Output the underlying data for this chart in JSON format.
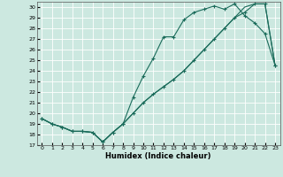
{
  "xlabel": "Humidex (Indice chaleur)",
  "bg_color": "#cce8e0",
  "line_color": "#1a6b5a",
  "ylim": [
    17,
    30.5
  ],
  "xlim": [
    -0.5,
    23.5
  ],
  "yticks": [
    17,
    18,
    19,
    20,
    21,
    22,
    23,
    24,
    25,
    26,
    27,
    28,
    29,
    30
  ],
  "xticks": [
    0,
    1,
    2,
    3,
    4,
    5,
    6,
    7,
    8,
    9,
    10,
    11,
    12,
    13,
    14,
    15,
    16,
    17,
    18,
    19,
    20,
    21,
    22,
    23
  ],
  "line1_x": [
    0,
    1,
    2,
    3,
    4,
    5,
    6,
    7,
    8,
    9,
    10,
    11,
    12,
    13,
    14,
    15,
    16,
    17,
    18,
    19,
    20,
    21,
    22,
    23
  ],
  "line1_y": [
    19.5,
    19.0,
    18.7,
    18.3,
    18.3,
    18.2,
    17.3,
    18.2,
    19.0,
    21.5,
    23.5,
    25.2,
    27.2,
    27.2,
    28.8,
    29.5,
    29.8,
    30.1,
    29.8,
    30.3,
    29.2,
    28.5,
    27.5,
    24.5
  ],
  "line2_x": [
    0,
    1,
    2,
    3,
    4,
    5,
    6,
    7,
    8,
    9,
    10,
    11,
    12,
    13,
    14,
    15,
    16,
    17,
    18,
    19,
    20,
    21,
    22,
    23
  ],
  "line2_y": [
    19.5,
    19.0,
    18.7,
    18.3,
    18.3,
    18.2,
    17.3,
    18.2,
    19.0,
    20.0,
    21.0,
    21.8,
    22.5,
    23.2,
    24.0,
    25.0,
    26.0,
    27.0,
    28.0,
    29.0,
    29.5,
    30.3,
    30.3,
    24.5
  ],
  "line3_x": [
    0,
    1,
    2,
    3,
    4,
    5,
    6,
    7,
    8,
    9,
    10,
    11,
    12,
    13,
    14,
    15,
    16,
    17,
    18,
    19,
    20,
    21,
    22,
    23
  ],
  "line3_y": [
    19.5,
    19.0,
    18.7,
    18.3,
    18.3,
    18.2,
    17.3,
    18.2,
    19.0,
    20.0,
    21.0,
    21.8,
    22.5,
    23.2,
    24.0,
    25.0,
    26.0,
    27.0,
    28.0,
    29.0,
    30.0,
    30.3,
    30.3,
    24.5
  ]
}
